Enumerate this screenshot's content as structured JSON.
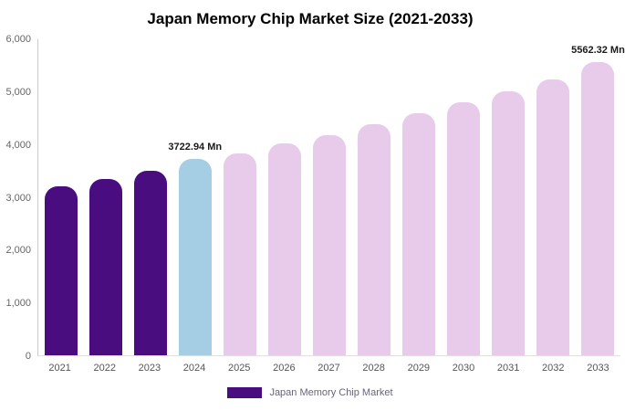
{
  "title": "Japan Memory Chip Market Size (2021-2033)",
  "legend": {
    "label": "Japan Memory Chip Market",
    "color": "#4a0d7f"
  },
  "colors": {
    "historical": "#4a0d7f",
    "current": "#a5cde3",
    "forecast": "#e8cbea"
  },
  "chart_data": {
    "type": "bar",
    "title": "Japan Memory Chip Market Size (2021-2033)",
    "xlabel": "",
    "ylabel": "",
    "ylim": [
      0,
      6000
    ],
    "grid": false,
    "legend_position": "bottom",
    "categories": [
      "2021",
      "2022",
      "2023",
      "2024",
      "2025",
      "2026",
      "2027",
      "2028",
      "2029",
      "2030",
      "2031",
      "2032",
      "2033"
    ],
    "values": [
      3200,
      3350,
      3500,
      3722.94,
      3840,
      4030,
      4180,
      4390,
      4600,
      4800,
      5010,
      5240,
      5562.32
    ],
    "bar_colors": [
      "#4a0d7f",
      "#4a0d7f",
      "#4a0d7f",
      "#a5cde3",
      "#e8cbea",
      "#e8cbea",
      "#e8cbea",
      "#e8cbea",
      "#e8cbea",
      "#e8cbea",
      "#e8cbea",
      "#e8cbea",
      "#e8cbea"
    ],
    "bar_labels": [
      "",
      "",
      "",
      "3722.94 Mn",
      "",
      "",
      "",
      "",
      "",
      "",
      "",
      "",
      "5562.32 Mn"
    ],
    "yticks": [
      {
        "value": 0,
        "label": "0"
      },
      {
        "value": 1000,
        "label": "1,000"
      },
      {
        "value": 2000,
        "label": "2,000"
      },
      {
        "value": 3000,
        "label": "3,000"
      },
      {
        "value": 4000,
        "label": "4,000"
      },
      {
        "value": 5000,
        "label": "5,000"
      },
      {
        "value": 6000,
        "label": "6,000"
      }
    ]
  }
}
